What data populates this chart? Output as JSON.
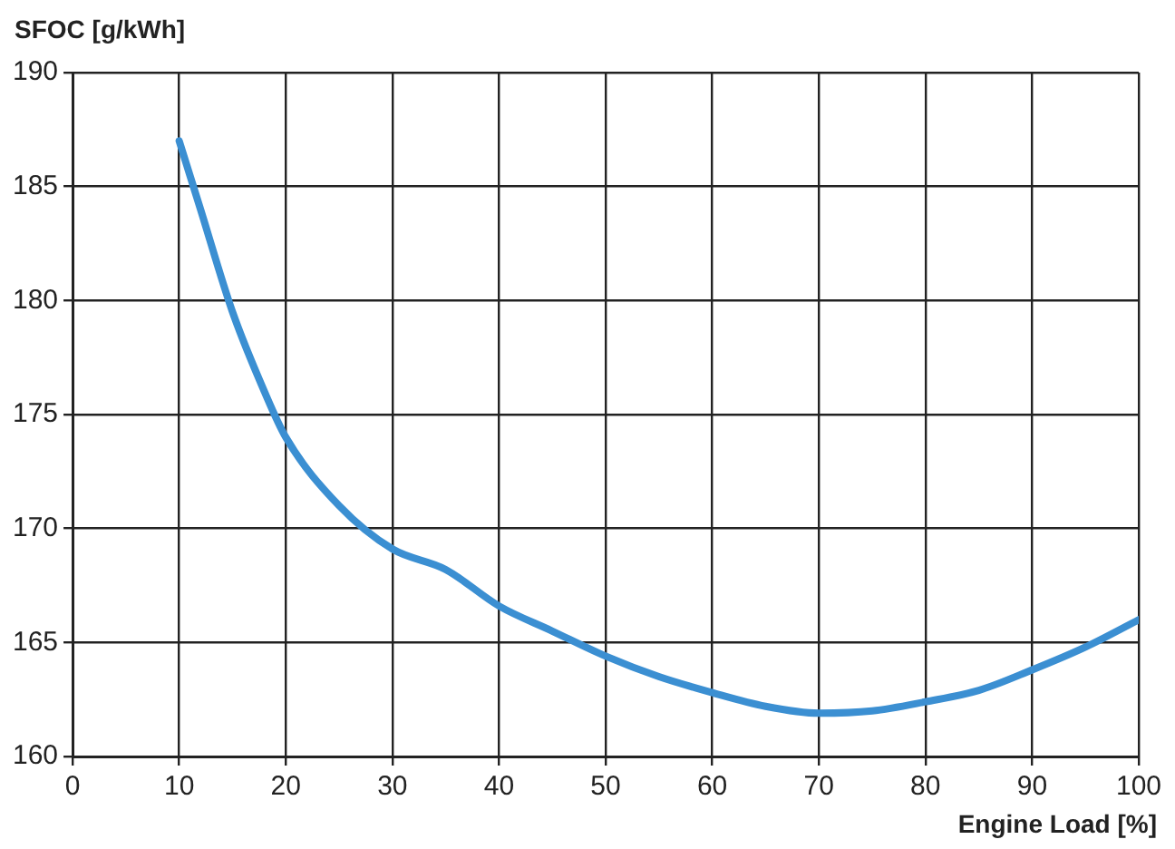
{
  "chart_data": {
    "type": "line",
    "xlabel": "Engine Load [%]",
    "ylabel": "SFOC [g/kWh]",
    "xlim": [
      0,
      100
    ],
    "xticks": [
      0,
      10,
      20,
      30,
      40,
      50,
      60,
      70,
      80,
      90,
      100
    ],
    "ylim": [
      160,
      190
    ],
    "yticks": [
      160,
      165,
      170,
      175,
      180,
      185,
      190
    ],
    "grid": true,
    "legend": false,
    "marker": "none",
    "line_style": "solid",
    "series": [
      {
        "color": "#3b8fd2",
        "x": [
          10,
          12,
          15,
          18,
          20,
          25,
          30,
          35,
          40,
          45,
          50,
          55,
          60,
          65,
          70,
          75,
          80,
          85,
          90,
          95,
          100
        ],
        "values": [
          187,
          184,
          179.5,
          176,
          174,
          171,
          169.1,
          168.2,
          166.6,
          165.5,
          164.4,
          163.5,
          162.8,
          162.2,
          161.9,
          162,
          162.4,
          162.9,
          163.8,
          164.8,
          166
        ]
      }
    ]
  }
}
